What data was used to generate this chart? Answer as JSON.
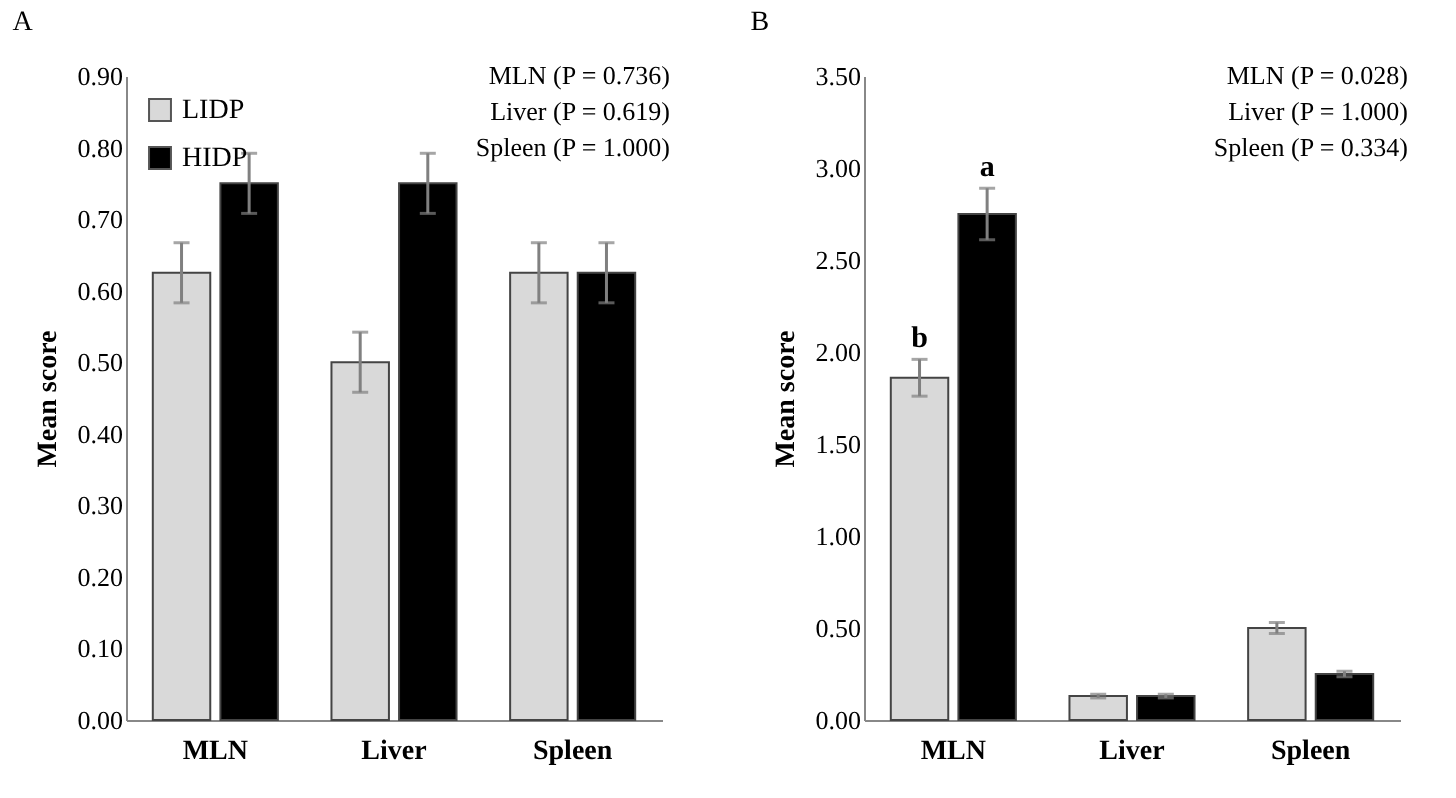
{
  "chart_data": [
    {
      "type": "bar",
      "title": "A",
      "ylabel": "Mean score",
      "categories": [
        "MLN",
        "Liver",
        "Spleen"
      ],
      "series": [
        {
          "name": "LIDP",
          "color": "#d9d9d9",
          "values": [
            0.625,
            0.5,
            0.625
          ],
          "errors": [
            0.042,
            0.042,
            0.042
          ]
        },
        {
          "name": "HIDP",
          "color": "#000000",
          "values": [
            0.75,
            0.75,
            0.625
          ],
          "errors": [
            0.042,
            0.042,
            0.042
          ]
        }
      ],
      "ylim": [
        0,
        0.9
      ],
      "yticks": [
        {
          "value": 0,
          "label": "0.00"
        },
        {
          "value": 0.1,
          "label": "0.10"
        },
        {
          "value": 0.2,
          "label": "0.20"
        },
        {
          "value": 0.3,
          "label": "0.30"
        },
        {
          "value": 0.4,
          "label": "0.40"
        },
        {
          "value": 0.5,
          "label": "0.50"
        },
        {
          "value": 0.6,
          "label": "0.60"
        },
        {
          "value": 0.7,
          "label": "0.70"
        },
        {
          "value": 0.8,
          "label": "0.80"
        },
        {
          "value": 0.9,
          "label": "0.90"
        }
      ],
      "legend": "top left",
      "grid": false,
      "annotations": [
        "MLN (P = 0.736)",
        "Liver (P = 0.619)",
        "Spleen (P = 1.000)"
      ]
    },
    {
      "type": "bar",
      "title": "B",
      "ylabel": "Mean score",
      "categories": [
        "MLN",
        "Liver",
        "Spleen"
      ],
      "series": [
        {
          "name": "LIDP",
          "color": "#d9d9d9",
          "values": [
            1.86,
            0.13,
            0.5
          ],
          "errors": [
            0.1,
            0.01,
            0.03
          ]
        },
        {
          "name": "HIDP",
          "color": "#000000",
          "values": [
            2.75,
            0.13,
            0.25
          ],
          "errors": [
            0.14,
            0.01,
            0.015
          ]
        }
      ],
      "ylim": [
        0,
        3.5
      ],
      "yticks": [
        {
          "value": 0,
          "label": "0.00"
        },
        {
          "value": 0.5,
          "label": "0.50"
        },
        {
          "value": 1,
          "label": "1.00"
        },
        {
          "value": 1.5,
          "label": "1.50"
        },
        {
          "value": 2,
          "label": "2.00"
        },
        {
          "value": 2.5,
          "label": "2.50"
        },
        {
          "value": 3,
          "label": "3.00"
        },
        {
          "value": 3.5,
          "label": "3.50"
        }
      ],
      "legend": "top left",
      "grid": false,
      "annotations": [
        "MLN (P = 0.028)",
        "Liver (P = 1.000)",
        "Spleen (P = 0.334)",
        {
          "text": "b",
          "x": "MLN",
          "y": 1.86
        },
        {
          "text": "a",
          "x": "MLN",
          "y": 2.75
        }
      ]
    }
  ]
}
